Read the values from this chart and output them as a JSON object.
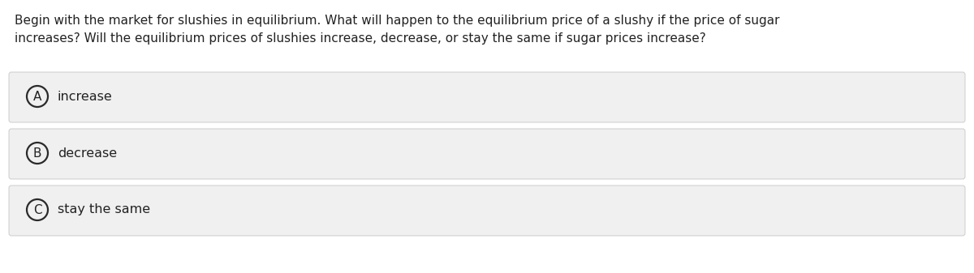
{
  "question_line1": "Begin with the market for slushies in equilibrium. What will happen to the equilibrium price of a slushy if the price of sugar",
  "question_line2": "increases? Will the equilibrium prices of slushies increase, decrease, or stay the same if sugar prices increase?",
  "options": [
    {
      "label": "A",
      "text": "increase"
    },
    {
      "label": "B",
      "text": "decrease"
    },
    {
      "label": "C",
      "text": "stay the same"
    }
  ],
  "background_color": "#ffffff",
  "option_box_color": "#f0f0f0",
  "option_box_edge_color": "#cccccc",
  "text_color": "#222222",
  "circle_edge_color": "#2a2a2a",
  "circle_face_color": "#f0f0f0",
  "question_fontsize": 11.0,
  "option_fontsize": 11.5,
  "label_fontsize": 11.0,
  "fig_width": 12.0,
  "fig_height": 3.37,
  "dpi": 100
}
